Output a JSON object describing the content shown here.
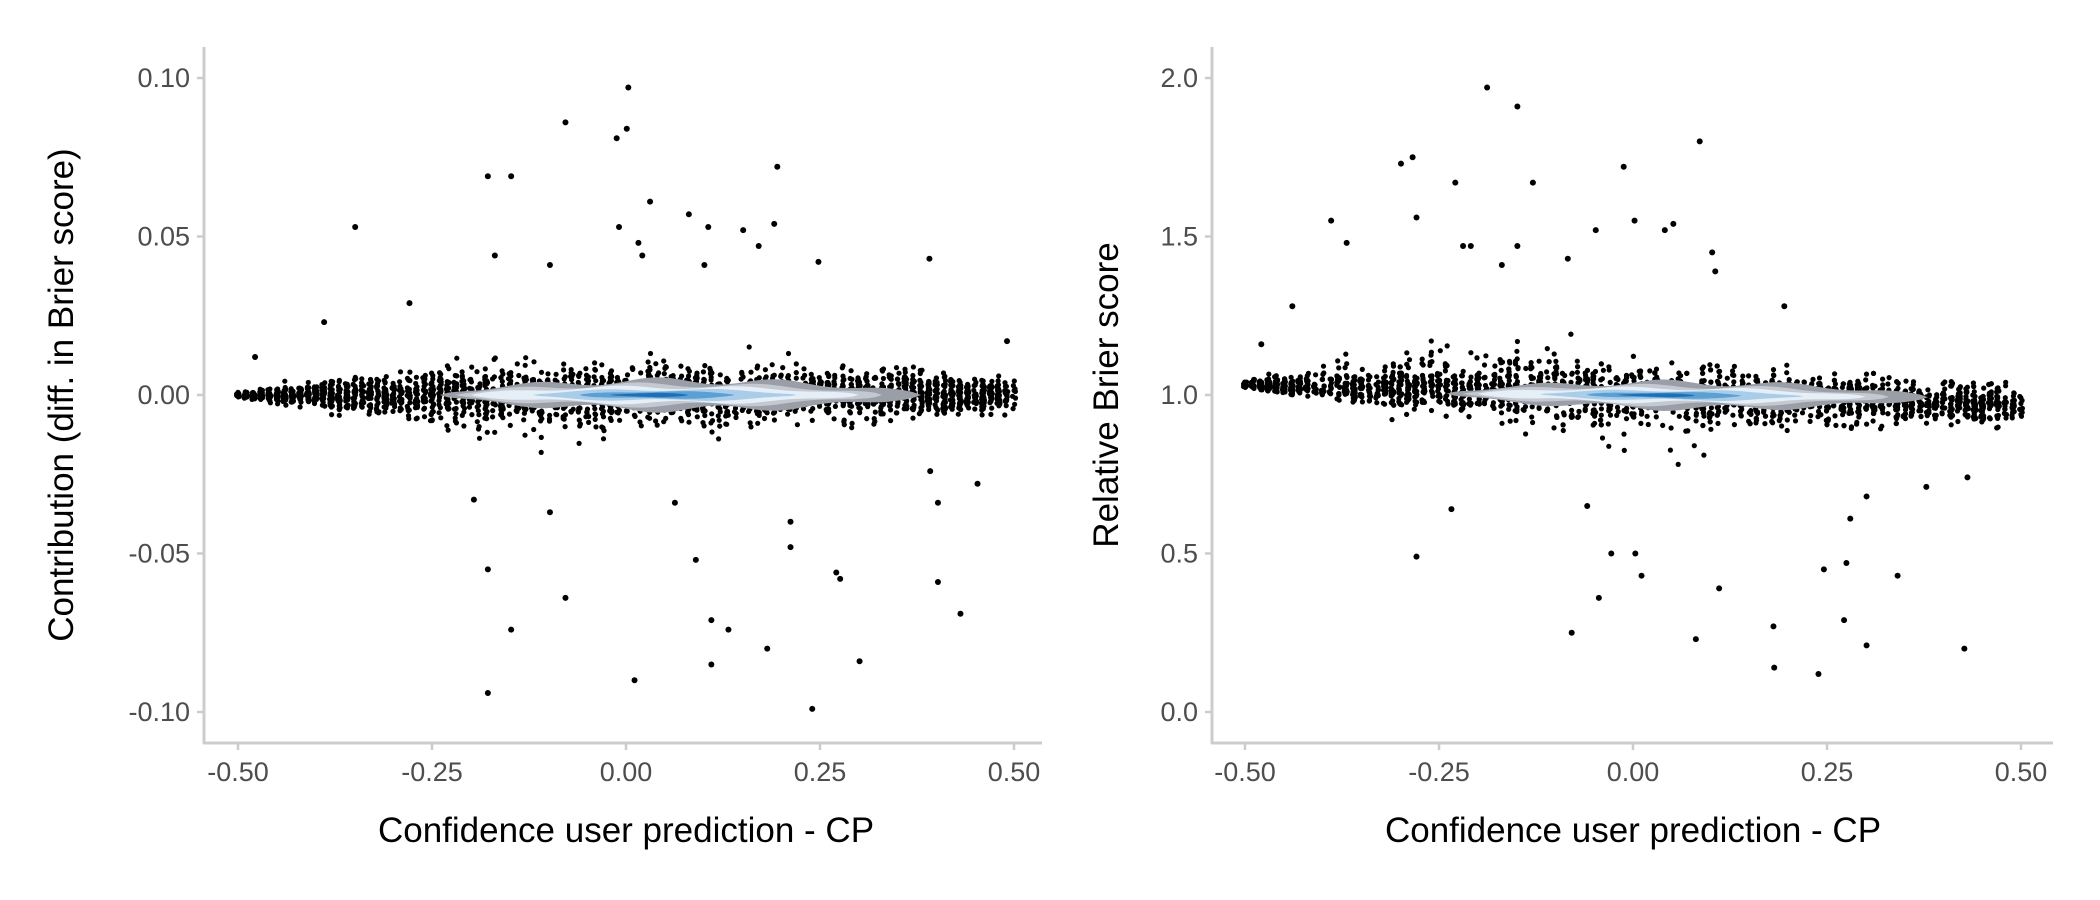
{
  "chart_data": [
    {
      "type": "scatter",
      "title": "",
      "xlabel": "Confidence user prediction - CP",
      "ylabel": "Contribution (diff. in Brier score)",
      "xlim": [
        -0.5,
        0.5
      ],
      "ylim": [
        -0.1,
        0.1
      ],
      "x_ticks": [
        -0.5,
        -0.25,
        0,
        0.25,
        0.5
      ],
      "x_tick_labels": [
        "-0.50",
        "-0.25",
        "0.00",
        "0.25",
        "0.50"
      ],
      "y_ticks": [
        -0.1,
        -0.05,
        0,
        0.05,
        0.1
      ],
      "y_tick_labels": [
        "-0.10",
        "-0.05",
        "0.00",
        "0.05",
        "0.10"
      ],
      "grid": false,
      "dense_cloud": {
        "center": 0.0,
        "tilt": 0.0,
        "spread_max": 0.009,
        "spread_min": 0.0008,
        "n": 2600
      },
      "density_center_tilt": 0.0,
      "density_spread": 0.0045,
      "outliers": [
        [
          0.003,
          0.097
        ],
        [
          -0.078,
          0.086
        ],
        [
          0.001,
          0.084
        ],
        [
          -0.012,
          0.081
        ],
        [
          -0.178,
          0.069
        ],
        [
          -0.148,
          0.069
        ],
        [
          0.195,
          0.072
        ],
        [
          0.031,
          0.061
        ],
        [
          0.081,
          0.057
        ],
        [
          -0.349,
          0.053
        ],
        [
          -0.009,
          0.053
        ],
        [
          0.106,
          0.053
        ],
        [
          0.151,
          0.052
        ],
        [
          0.191,
          0.054
        ],
        [
          -0.169,
          0.044
        ],
        [
          0.016,
          0.048
        ],
        [
          0.021,
          0.044
        ],
        [
          0.171,
          0.047
        ],
        [
          0.391,
          0.043
        ],
        [
          -0.098,
          0.041
        ],
        [
          0.101,
          0.041
        ],
        [
          0.248,
          0.042
        ],
        [
          -0.279,
          0.029
        ],
        [
          -0.389,
          0.023
        ],
        [
          -0.478,
          0.012
        ],
        [
          0.491,
          0.017
        ],
        [
          -0.196,
          -0.033
        ],
        [
          -0.098,
          -0.037
        ],
        [
          0.063,
          -0.034
        ],
        [
          0.212,
          -0.04
        ],
        [
          0.212,
          -0.048
        ],
        [
          0.09,
          -0.052
        ],
        [
          -0.178,
          -0.055
        ],
        [
          0.271,
          -0.056
        ],
        [
          0.276,
          -0.058
        ],
        [
          0.402,
          -0.059
        ],
        [
          -0.078,
          -0.064
        ],
        [
          0.431,
          -0.069
        ],
        [
          0.11,
          -0.071
        ],
        [
          0.132,
          -0.074
        ],
        [
          -0.148,
          -0.074
        ],
        [
          0.182,
          -0.08
        ],
        [
          0.11,
          -0.085
        ],
        [
          0.301,
          -0.084
        ],
        [
          0.011,
          -0.09
        ],
        [
          -0.178,
          -0.094
        ],
        [
          0.24,
          -0.099
        ],
        [
          0.453,
          -0.028
        ],
        [
          0.402,
          -0.034
        ],
        [
          0.392,
          -0.024
        ]
      ]
    },
    {
      "type": "scatter",
      "title": "",
      "xlabel": "Confidence user prediction - CP",
      "ylabel": "Relative Brier score",
      "xlim": [
        -0.5,
        0.5
      ],
      "ylim": [
        0,
        2
      ],
      "x_ticks": [
        -0.5,
        -0.25,
        0,
        0.25,
        0.5
      ],
      "x_tick_labels": [
        "-0.50",
        "-0.25",
        "0.00",
        "0.25",
        "0.50"
      ],
      "y_ticks": [
        0,
        0.5,
        1,
        1.5,
        2
      ],
      "y_tick_labels": [
        "0.0",
        "0.5",
        "1.0",
        "1.5",
        "2.0"
      ],
      "grid": false,
      "dense_cloud": {
        "center": 1.0,
        "tilt": -0.03,
        "spread_max": 0.085,
        "spread_min": 0.008,
        "n": 2600
      },
      "density_center_tilt": -0.03,
      "density_spread": 0.04,
      "outliers": [
        [
          -0.188,
          1.97
        ],
        [
          -0.149,
          1.91
        ],
        [
          0.086,
          1.8
        ],
        [
          -0.299,
          1.73
        ],
        [
          -0.284,
          1.75
        ],
        [
          -0.012,
          1.72
        ],
        [
          -0.229,
          1.67
        ],
        [
          -0.129,
          1.67
        ],
        [
          -0.389,
          1.55
        ],
        [
          -0.279,
          1.56
        ],
        [
          0.002,
          1.55
        ],
        [
          0.052,
          1.54
        ],
        [
          0.041,
          1.52
        ],
        [
          -0.048,
          1.52
        ],
        [
          -0.369,
          1.48
        ],
        [
          -0.219,
          1.47
        ],
        [
          -0.209,
          1.47
        ],
        [
          -0.149,
          1.47
        ],
        [
          0.102,
          1.45
        ],
        [
          0.106,
          1.39
        ],
        [
          -0.084,
          1.43
        ],
        [
          -0.169,
          1.41
        ],
        [
          -0.439,
          1.28
        ],
        [
          -0.479,
          1.16
        ],
        [
          0.195,
          1.28
        ],
        [
          -0.234,
          0.64
        ],
        [
          -0.059,
          0.65
        ],
        [
          -0.279,
          0.49
        ],
        [
          -0.028,
          0.5
        ],
        [
          0.003,
          0.5
        ],
        [
          0.011,
          0.43
        ],
        [
          0.111,
          0.39
        ],
        [
          -0.044,
          0.36
        ],
        [
          0.246,
          0.45
        ],
        [
          0.275,
          0.47
        ],
        [
          0.341,
          0.43
        ],
        [
          0.28,
          0.61
        ],
        [
          0.301,
          0.68
        ],
        [
          0.378,
          0.71
        ],
        [
          0.431,
          0.74
        ],
        [
          -0.079,
          0.25
        ],
        [
          0.081,
          0.23
        ],
        [
          0.181,
          0.27
        ],
        [
          0.272,
          0.29
        ],
        [
          0.301,
          0.21
        ],
        [
          0.182,
          0.14
        ],
        [
          0.239,
          0.12
        ],
        [
          0.427,
          0.2
        ]
      ]
    }
  ],
  "colors": {
    "points": "#000000",
    "density_levels": [
      "#9a9ea6",
      "#c4c9d1",
      "#e6eef7",
      "#a9cde8",
      "#5b9fd3",
      "#1f6fb4"
    ]
  }
}
